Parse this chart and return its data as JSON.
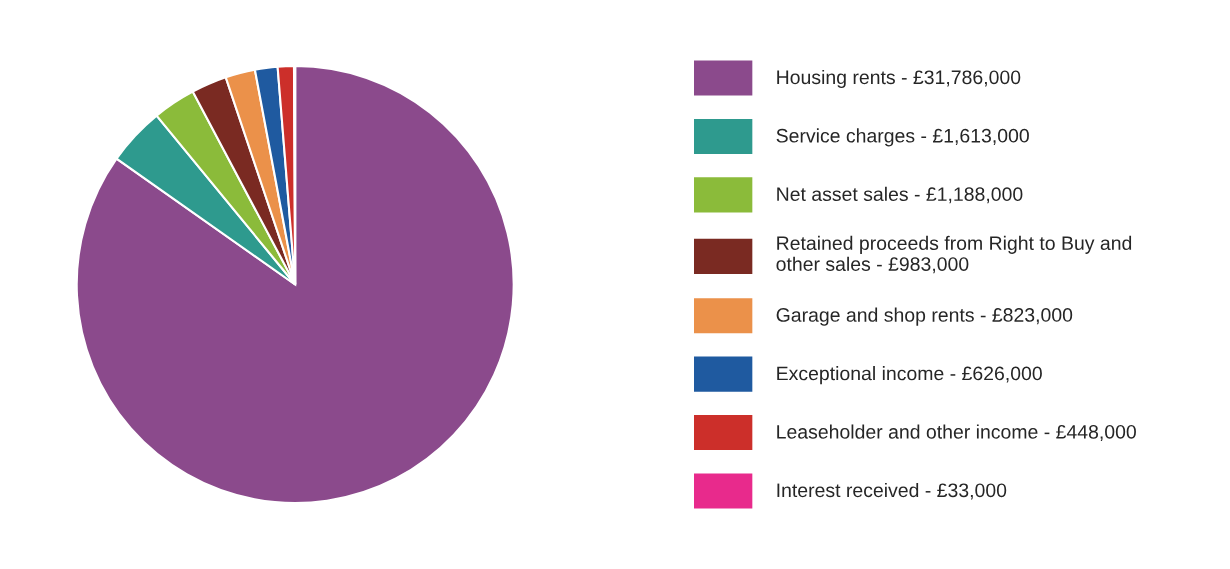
{
  "chart_data": {
    "type": "pie",
    "categories": [
      "Housing rents",
      "Service charges",
      "Net asset sales",
      "Retained proceeds from Right to Buy and\nother sales",
      "Garage and shop rents",
      "Exceptional income",
      "Leaseholder and other income",
      "Interest received"
    ],
    "value_labels": [
      "£31,786,000",
      "£1,613,000",
      "£1,188,000",
      "£983,000",
      "£823,000",
      "£626,000",
      "£448,000",
      "£33,000"
    ],
    "values": [
      31786000,
      1613000,
      1188000,
      983000,
      823000,
      626000,
      448000,
      33000
    ],
    "colors": [
      "#8b4a8c",
      "#2e9a8e",
      "#8bbb3a",
      "#7a2a22",
      "#eb914a",
      "#1f5aa0",
      "#cc2f2a",
      "#e82a8c"
    ],
    "legend": "right"
  }
}
